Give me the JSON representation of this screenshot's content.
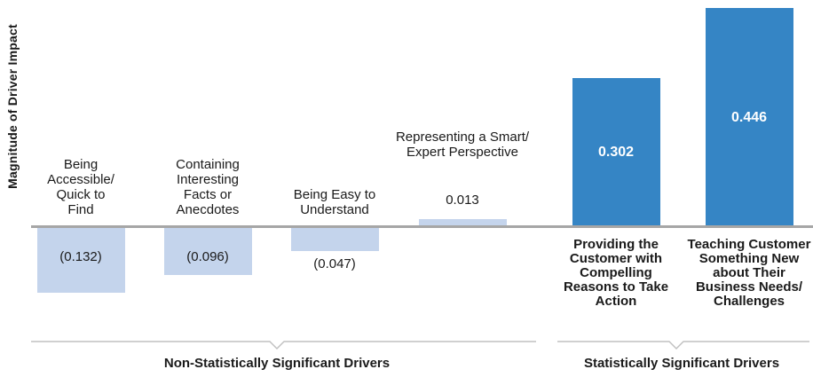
{
  "chart_data": {
    "type": "bar",
    "title": "",
    "ylabel": "Magnitude of Driver Impact",
    "xlabel": "",
    "baseline_value": 0,
    "grid": false,
    "legend": false,
    "ylim_px_scale_note": "bars rendered from value * scale around a zero baseline",
    "groups": [
      {
        "name": "Non-Statistically Significant Drivers"
      },
      {
        "name": "Statistically Significant Drivers"
      }
    ],
    "bars": [
      {
        "label": "Being\nAccessible/\nQuick to\nFind",
        "value": -0.132,
        "display": "(0.132)",
        "group": 0,
        "color_key": "light"
      },
      {
        "label": "Containing\nInteresting\nFacts or\nAnecdotes",
        "value": -0.096,
        "display": "(0.096)",
        "group": 0,
        "color_key": "light"
      },
      {
        "label": "Being Easy to\nUnderstand",
        "value": -0.047,
        "display": "(0.047)",
        "group": 0,
        "color_key": "light"
      },
      {
        "label": "Representing a Smart/\nExpert Perspective",
        "value": 0.013,
        "display": "0.013",
        "group": 0,
        "color_key": "light"
      },
      {
        "label": "Providing the\nCustomer with\nCompelling\nReasons to Take\nAction",
        "value": 0.302,
        "display": "0.302",
        "group": 1,
        "color_key": "dark"
      },
      {
        "label": "Teaching Customer\nSomething New\nabout Their\nBusiness Needs/\nChallenges",
        "value": 0.446,
        "display": "0.446",
        "group": 1,
        "color_key": "dark"
      }
    ],
    "colors": {
      "light_bar": "#c4d4ec",
      "dark_bar": "#3585c5",
      "baseline": "#a6a6a6",
      "brace_line": "#c0c0c0",
      "text": "#1a1a1a",
      "value_text_on_dark": "#ffffff"
    }
  }
}
